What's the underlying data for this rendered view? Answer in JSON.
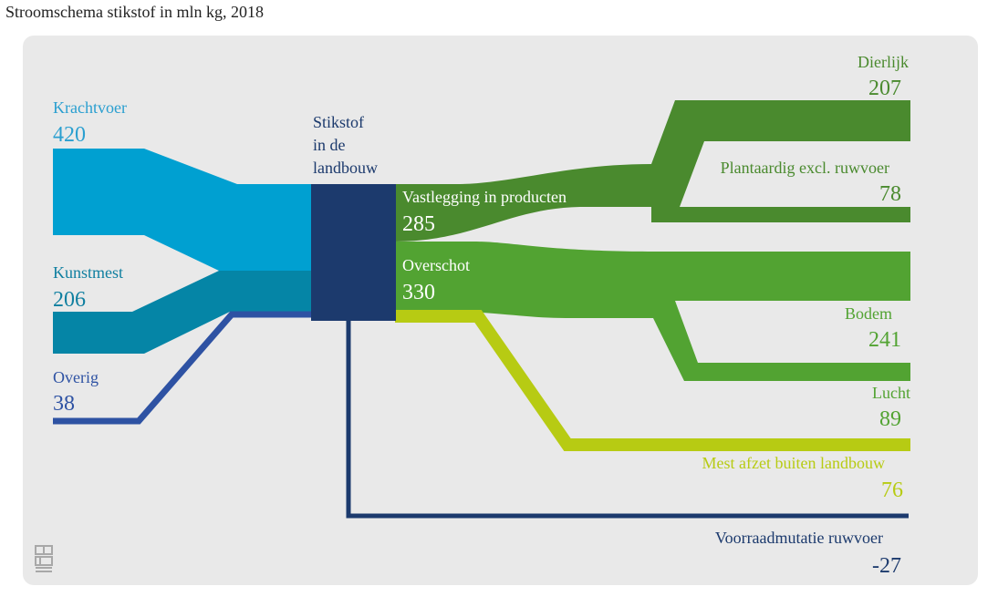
{
  "title": "Stroomschema stikstof in mln kg, 2018",
  "colors": {
    "krachtvoer": "#00a0d1",
    "kunstmest": "#0585a6",
    "overig": "#2e52a3",
    "center": "#1c3a6d",
    "vastlegging": "#4a8a2e",
    "overschot": "#52a332",
    "mest": "#b7cb13",
    "voorraad": "#1c3a6d"
  },
  "inputs": {
    "krachtvoer": {
      "label": "Krachtvoer",
      "value": "420"
    },
    "kunstmest": {
      "label": "Kunstmest",
      "value": "206"
    },
    "overig": {
      "label": "Overig",
      "value": "38"
    }
  },
  "center": {
    "line1": "Stikstof",
    "line2": "in de",
    "line3": "landbouw"
  },
  "middle": {
    "vastlegging": {
      "label": "Vastlegging in producten",
      "value": "285"
    },
    "overschot": {
      "label": "Overschot",
      "value": "330"
    }
  },
  "outputs": {
    "dierlijk": {
      "label": "Dierlijk",
      "value": "207"
    },
    "plantaardig": {
      "label": "Plantaardig excl. ruwvoer",
      "value": "78"
    },
    "bodem": {
      "label": "Bodem",
      "value": "241"
    },
    "lucht": {
      "label": "Lucht",
      "value": "89"
    },
    "mest": {
      "label": "Mest afzet buiten landbouw",
      "value": "76"
    },
    "voorraad": {
      "label": "Voorraadmutatie ruwvoer",
      "value": "-27"
    }
  },
  "logo": "cbs"
}
